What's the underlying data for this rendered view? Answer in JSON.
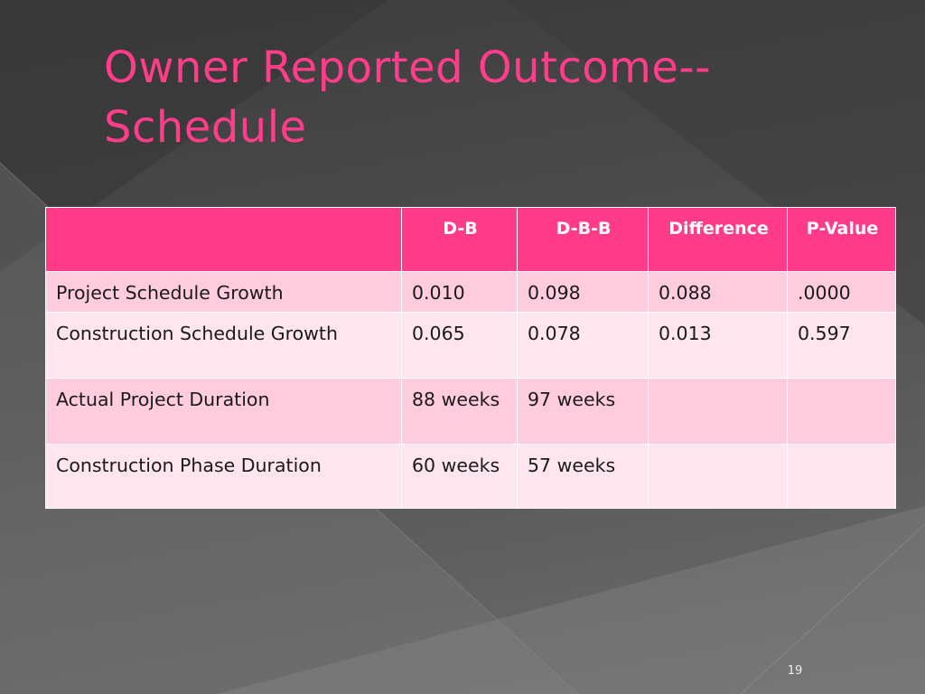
{
  "slide": {
    "title": "Owner Reported Outcome--Schedule",
    "number": "19"
  },
  "table": {
    "headers": [
      "",
      "D-B",
      "D-B-B",
      "Difference",
      "P-Value"
    ],
    "rows": [
      [
        "Project Schedule Growth",
        "0.010",
        "0.098",
        "0.088",
        ".0000"
      ],
      [
        "Construction Schedule Growth",
        "0.065",
        "0.078",
        "0.013",
        "0.597"
      ],
      [
        "Actual Project Duration",
        "88 weeks",
        "97 weeks",
        "",
        ""
      ],
      [
        "Construction Phase Duration",
        "60 weeks",
        "57 weeks",
        "",
        ""
      ]
    ]
  },
  "colors": {
    "title": "#ff3d8b",
    "header_fill": "#ff3b8a",
    "row_odd_fill": "#ffccdd",
    "row_even_fill": "#ffe6ee",
    "background": "#4a4a4a"
  }
}
